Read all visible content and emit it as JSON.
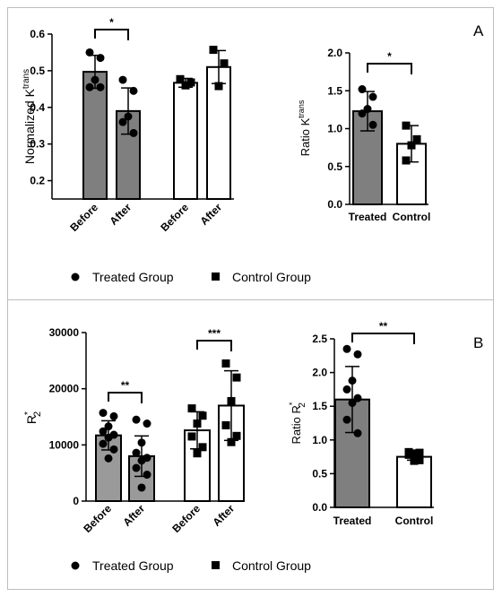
{
  "panel_a_letter": "A",
  "panel_b_letter": "B",
  "legend": {
    "treated": "Treated Group",
    "control": "Control Group"
  },
  "chart_data": [
    {
      "id": "A-left",
      "type": "bar",
      "ylabel": "Normalized K",
      "ylabel_sup": "trans",
      "ylim": [
        0.15,
        0.6
      ],
      "yticks": [
        "0.2",
        "0.3",
        "0.4",
        "0.5",
        "0.6"
      ],
      "categories": [
        "Before",
        "After",
        "Before",
        "After"
      ],
      "groups": [
        "treated",
        "treated",
        "control",
        "control"
      ],
      "means": [
        0.497,
        0.39,
        0.467,
        0.51
      ],
      "sd": [
        0.045,
        0.063,
        0.012,
        0.045
      ],
      "points": [
        [
          0.55,
          0.535,
          0.475,
          0.455,
          0.455
        ],
        [
          0.475,
          0.445,
          0.375,
          0.36,
          0.33
        ],
        [
          0.477,
          0.468,
          0.46
        ],
        [
          0.557,
          0.52,
          0.458
        ]
      ],
      "significance": [
        {
          "from": 0,
          "to": 1,
          "label": "*"
        }
      ],
      "grid": false
    },
    {
      "id": "A-right",
      "type": "bar",
      "ylabel": "Ratio K",
      "ylabel_sup": "trans",
      "ylim": [
        0.0,
        2.0
      ],
      "yticks": [
        "0.0",
        "0.5",
        "1.0",
        "1.5",
        "2.0"
      ],
      "categories": [
        "Treated",
        "Control"
      ],
      "groups": [
        "treated",
        "control"
      ],
      "means": [
        1.23,
        0.8
      ],
      "sd": [
        0.26,
        0.24
      ],
      "points": [
        [
          1.52,
          1.42,
          1.26,
          1.2,
          1.05
        ],
        [
          1.04,
          0.86,
          0.78,
          0.58
        ]
      ],
      "significance": [
        {
          "from": 0,
          "to": 1,
          "label": "*"
        }
      ],
      "grid": false
    },
    {
      "id": "B-left",
      "type": "bar",
      "ylabel": "R",
      "ylabel_sup": "*",
      "ylabel_sub": "2",
      "ylim": [
        0,
        30000
      ],
      "yticks": [
        "0",
        "10000",
        "20000",
        "30000"
      ],
      "categories": [
        "Before",
        "After",
        "Before",
        "After"
      ],
      "groups": [
        "treated",
        "treated",
        "control",
        "control"
      ],
      "means": [
        11700,
        8000,
        12600,
        17000
      ],
      "sd": [
        2600,
        3600,
        3300,
        6200
      ],
      "points": [
        [
          15700,
          15100,
          13300,
          12400,
          11800,
          11300,
          10200,
          9200,
          7600
        ],
        [
          14500,
          13800,
          10400,
          8600,
          7700,
          7200,
          5900,
          4700,
          2400
        ],
        [
          16500,
          15200,
          13800,
          11500,
          9600,
          8500
        ],
        [
          24500,
          22000,
          17800,
          13500,
          11600,
          10500
        ]
      ],
      "significance": [
        {
          "from": 0,
          "to": 1,
          "label": "**"
        },
        {
          "from": 2,
          "to": 3,
          "label": "***"
        }
      ],
      "grid": false
    },
    {
      "id": "B-right",
      "type": "bar",
      "ylabel": "Ratio R",
      "ylabel_sup": "*",
      "ylabel_sub": "2",
      "ylim": [
        0.0,
        2.5
      ],
      "yticks": [
        "0.0",
        "0.5",
        "1.0",
        "1.5",
        "2.0",
        "2.5"
      ],
      "categories": [
        "Treated",
        "Control"
      ],
      "groups": [
        "treated",
        "control"
      ],
      "means": [
        1.6,
        0.75
      ],
      "sd": [
        0.49,
        0.05
      ],
      "points": [
        [
          2.35,
          2.27,
          1.88,
          1.75,
          1.62,
          1.55,
          1.3,
          1.1
        ],
        [
          0.82,
          0.81,
          0.8,
          0.78,
          0.7,
          0.69
        ]
      ],
      "significance": [
        {
          "from": 0,
          "to": 1,
          "label": "**"
        }
      ],
      "grid": false
    }
  ],
  "colors": {
    "treated_bar": "#7f7f7f",
    "treated_bar_light": "#9a9a9a",
    "control_bar": "#ffffff",
    "outline": "#000000",
    "frame": "#bdbdbd"
  }
}
